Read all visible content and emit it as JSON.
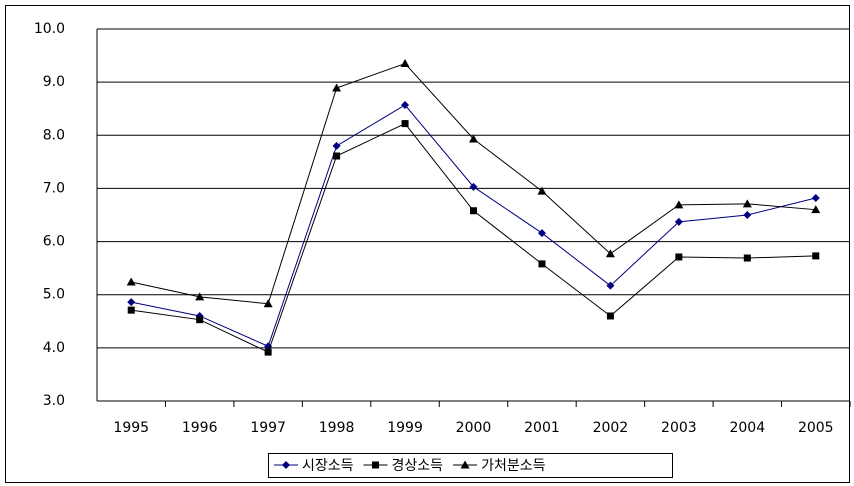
{
  "chart_data": {
    "type": "line",
    "categories": [
      "1995",
      "1996",
      "1997",
      "1998",
      "1999",
      "2000",
      "2001",
      "2002",
      "2003",
      "2004",
      "2005"
    ],
    "series": [
      {
        "name": "시장소득",
        "color": "#000080",
        "marker": "diamond",
        "values": [
          4.86,
          4.6,
          4.03,
          7.8,
          8.57,
          7.03,
          6.16,
          5.17,
          6.37,
          6.5,
          6.82
        ]
      },
      {
        "name": "경상소득",
        "color": "#000000",
        "marker": "square",
        "values": [
          4.71,
          4.53,
          3.92,
          7.61,
          8.22,
          6.58,
          5.58,
          4.6,
          5.71,
          5.69,
          5.73
        ]
      },
      {
        "name": "가처분소득",
        "color": "#000000",
        "marker": "triangle",
        "values": [
          5.24,
          4.96,
          4.83,
          8.89,
          9.35,
          7.93,
          6.95,
          5.77,
          6.69,
          6.71,
          6.6
        ]
      }
    ],
    "ylim": [
      3,
      10
    ],
    "yticks": [
      {
        "value": 3,
        "label": "3.0"
      },
      {
        "value": 4,
        "label": "4.0"
      },
      {
        "value": 5,
        "label": "5.0"
      },
      {
        "value": 6,
        "label": "6.0"
      },
      {
        "value": 7,
        "label": "7.0"
      },
      {
        "value": 8,
        "label": "8.0"
      },
      {
        "value": 9,
        "label": "9.0"
      },
      {
        "value": 10,
        "label": "10.0"
      }
    ],
    "grid": true,
    "legend": "bottom"
  }
}
